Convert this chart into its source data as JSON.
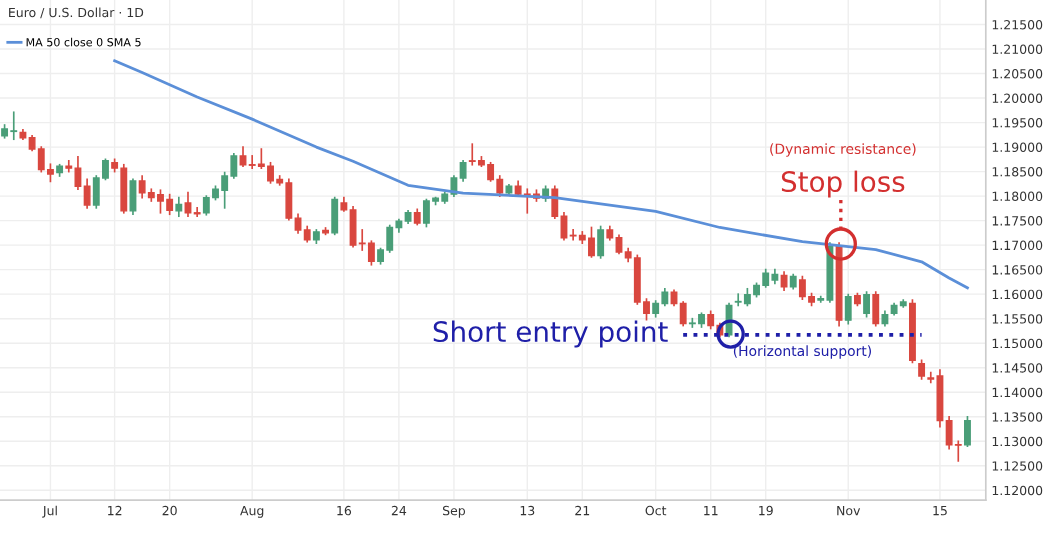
{
  "chart_data": {
    "type": "candlestick",
    "title": "Euro / U.S. Dollar · 1D",
    "categories": [
      null,
      null,
      null,
      null,
      null,
      "Jul",
      null,
      null,
      null,
      null,
      null,
      null,
      "12",
      null,
      null,
      null,
      null,
      null,
      "20",
      null,
      null,
      null,
      null,
      null,
      null,
      null,
      null,
      "Aug",
      null,
      null,
      null,
      null,
      null,
      null,
      null,
      null,
      null,
      "16",
      null,
      null,
      null,
      null,
      null,
      "24",
      null,
      null,
      null,
      null,
      null,
      "Sep",
      null,
      null,
      null,
      null,
      null,
      null,
      null,
      "13",
      null,
      null,
      null,
      null,
      null,
      "21",
      null,
      null,
      null,
      null,
      null,
      null,
      null,
      "Oct",
      null,
      null,
      null,
      null,
      null,
      "11",
      null,
      null,
      null,
      null,
      null,
      "19",
      null,
      null,
      null,
      null,
      null,
      null,
      null,
      null,
      "Nov",
      null,
      null,
      null,
      null,
      null,
      null,
      null,
      null,
      null,
      "15",
      null,
      null,
      null
    ],
    "ohlc": [
      [
        1.1923,
        1.1945,
        1.1919,
        1.1937
      ],
      [
        1.1932,
        1.1971,
        1.1916,
        1.1933
      ],
      [
        1.193,
        1.1935,
        1.1916,
        1.1919
      ],
      [
        1.1919,
        1.1923,
        1.1893,
        1.1896
      ],
      [
        1.1896,
        1.19,
        1.185,
        1.1854
      ],
      [
        1.1854,
        1.1865,
        1.183,
        1.1845
      ],
      [
        1.1848,
        1.1864,
        1.1841,
        1.1861
      ],
      [
        1.1861,
        1.1872,
        1.185,
        1.1857
      ],
      [
        1.1857,
        1.188,
        1.1814,
        1.182
      ],
      [
        1.182,
        1.1834,
        1.1776,
        1.1782
      ],
      [
        1.1782,
        1.1841,
        1.1776,
        1.1837
      ],
      [
        1.1837,
        1.1875,
        1.1834,
        1.1872
      ],
      [
        1.1868,
        1.1875,
        1.185,
        1.1857
      ],
      [
        1.1857,
        1.1864,
        1.1766,
        1.177
      ],
      [
        1.177,
        1.1834,
        1.1763,
        1.1831
      ],
      [
        1.1831,
        1.1841,
        1.1797,
        1.1807
      ],
      [
        1.1807,
        1.1814,
        1.179,
        1.1797
      ],
      [
        1.1803,
        1.1812,
        1.1766,
        1.179
      ],
      [
        1.1793,
        1.1803,
        1.1763,
        1.1771
      ],
      [
        1.177,
        1.1797,
        1.1759,
        1.1783
      ],
      [
        1.1786,
        1.1807,
        1.1759,
        1.1766
      ],
      [
        1.1766,
        1.1776,
        1.1759,
        1.1764
      ],
      [
        1.1766,
        1.18,
        1.1762,
        1.1797
      ],
      [
        1.1797,
        1.182,
        1.1793,
        1.1814
      ],
      [
        1.1812,
        1.1848,
        1.1776,
        1.1841
      ],
      [
        1.1841,
        1.1886,
        1.1837,
        1.1882
      ],
      [
        1.1882,
        1.19,
        1.1861,
        1.1864
      ],
      [
        1.1864,
        1.1882,
        1.1857,
        1.1863
      ],
      [
        1.1865,
        1.1896,
        1.1857,
        1.1861
      ],
      [
        1.1861,
        1.1868,
        1.1827,
        1.1831
      ],
      [
        1.1834,
        1.1841,
        1.1823,
        1.1827
      ],
      [
        1.1827,
        1.1834,
        1.1752,
        1.1755
      ],
      [
        1.1755,
        1.1763,
        1.1725,
        1.1731
      ],
      [
        1.1731,
        1.1738,
        1.1707,
        1.1711
      ],
      [
        1.1711,
        1.1731,
        1.1704,
        1.1727
      ],
      [
        1.173,
        1.1735,
        1.1722,
        1.1725
      ],
      [
        1.1725,
        1.1797,
        1.1722,
        1.1793
      ],
      [
        1.1786,
        1.1797,
        1.177,
        1.1772
      ],
      [
        1.1772,
        1.1778,
        1.1697,
        1.17
      ],
      [
        1.1704,
        1.1731,
        1.169,
        1.1703
      ],
      [
        1.1704,
        1.1708,
        1.166,
        1.1667
      ],
      [
        1.1667,
        1.1693,
        1.1662,
        1.169
      ],
      [
        1.169,
        1.174,
        1.1686,
        1.1736
      ],
      [
        1.1736,
        1.1752,
        1.1727,
        1.1749
      ],
      [
        1.1749,
        1.177,
        1.1745,
        1.1766
      ],
      [
        1.1766,
        1.1773,
        1.1742,
        1.1745
      ],
      [
        1.1745,
        1.1793,
        1.1738,
        1.179
      ],
      [
        1.179,
        1.1797,
        1.1783,
        1.1796
      ],
      [
        1.179,
        1.1807,
        1.1786,
        1.1804
      ],
      [
        1.1804,
        1.1841,
        1.18,
        1.1837
      ],
      [
        1.1837,
        1.1872,
        1.1831,
        1.1868
      ],
      [
        1.1872,
        1.1906,
        1.1864,
        1.1871
      ],
      [
        1.1872,
        1.188,
        1.1861,
        1.1864
      ],
      [
        1.1864,
        1.1868,
        1.1831,
        1.1834
      ],
      [
        1.1834,
        1.1841,
        1.18,
        1.1807
      ],
      [
        1.1807,
        1.1823,
        1.1803,
        1.182
      ],
      [
        1.182,
        1.183,
        1.18,
        1.1804
      ],
      [
        1.1804,
        1.1814,
        1.1766,
        1.1803
      ],
      [
        1.1804,
        1.1812,
        1.179,
        1.1796
      ],
      [
        1.1796,
        1.182,
        1.179,
        1.1814
      ],
      [
        1.1814,
        1.182,
        1.1755,
        1.1759
      ],
      [
        1.1759,
        1.1766,
        1.1711,
        1.1715
      ],
      [
        1.172,
        1.1731,
        1.1711,
        1.1719
      ],
      [
        1.172,
        1.1727,
        1.1704,
        1.1711
      ],
      [
        1.1714,
        1.1736,
        1.1676,
        1.1679
      ],
      [
        1.1679,
        1.1738,
        1.1674,
        1.1731
      ],
      [
        1.1731,
        1.1738,
        1.1711,
        1.1715
      ],
      [
        1.1715,
        1.172,
        1.1683,
        1.1686
      ],
      [
        1.1686,
        1.1693,
        1.1667,
        1.1674
      ],
      [
        1.1674,
        1.1679,
        1.158,
        1.1584
      ],
      [
        1.1584,
        1.159,
        1.1548,
        1.1561
      ],
      [
        1.1561,
        1.1586,
        1.1554,
        1.1581
      ],
      [
        1.1581,
        1.1611,
        1.1577,
        1.1604
      ],
      [
        1.1604,
        1.1608,
        1.1577,
        1.1581
      ],
      [
        1.1581,
        1.1584,
        1.1536,
        1.154
      ],
      [
        1.154,
        1.155,
        1.1533,
        1.1541
      ],
      [
        1.154,
        1.1561,
        1.1533,
        1.1558
      ],
      [
        1.1558,
        1.1565,
        1.153,
        1.1536
      ],
      [
        1.1536,
        1.154,
        1.1514,
        1.1517
      ],
      [
        1.1517,
        1.1581,
        1.1514,
        1.1577
      ],
      [
        1.1584,
        1.16,
        1.1577,
        1.1585
      ],
      [
        1.1581,
        1.1611,
        1.1577,
        1.1599
      ],
      [
        1.1599,
        1.1622,
        1.1595,
        1.1618
      ],
      [
        1.1618,
        1.165,
        1.1615,
        1.1643
      ],
      [
        1.1629,
        1.165,
        1.1622,
        1.164
      ],
      [
        1.1638,
        1.1645,
        1.1608,
        1.1615
      ],
      [
        1.1615,
        1.164,
        1.1611,
        1.1636
      ],
      [
        1.1629,
        1.1636,
        1.159,
        1.1595
      ],
      [
        1.1595,
        1.1601,
        1.1577,
        1.1584
      ],
      [
        1.1588,
        1.1595,
        1.1584,
        1.1591
      ],
      [
        1.1588,
        1.1704,
        1.1584,
        1.1697
      ],
      [
        1.1697,
        1.1704,
        1.1536,
        1.1547
      ],
      [
        1.1547,
        1.1599,
        1.154,
        1.1595
      ],
      [
        1.1597,
        1.1601,
        1.1577,
        1.1581
      ],
      [
        1.1561,
        1.1604,
        1.1554,
        1.1599
      ],
      [
        1.1599,
        1.1604,
        1.1536,
        1.154
      ],
      [
        1.154,
        1.1565,
        1.1536,
        1.1558
      ],
      [
        1.1561,
        1.1581,
        1.1558,
        1.1577
      ],
      [
        1.1577,
        1.1588,
        1.1574,
        1.1584
      ],
      [
        1.1581,
        1.1588,
        1.1461,
        1.1465
      ],
      [
        1.1458,
        1.1465,
        1.1427,
        1.1433
      ],
      [
        1.1429,
        1.144,
        1.142,
        1.1427
      ],
      [
        1.1433,
        1.1445,
        1.133,
        1.1342
      ],
      [
        1.1342,
        1.135,
        1.1285,
        1.1293
      ],
      [
        1.1293,
        1.13,
        1.126,
        1.1292
      ],
      [
        1.1293,
        1.135,
        1.129,
        1.1342
      ]
    ],
    "colors": [
      "#4a9e78",
      "#4a9e78",
      "#d9473f",
      "#d9473f",
      "#d9473f",
      "#d9473f",
      "#4a9e78",
      "#d9473f",
      "#d9473f",
      "#d9473f",
      "#4a9e78",
      "#4a9e78",
      "#d9473f",
      "#d9473f",
      "#4a9e78",
      "#d9473f",
      "#d9473f",
      "#d9473f",
      "#d9473f",
      "#4a9e78",
      "#d9473f",
      "#d9473f",
      "#4a9e78",
      "#4a9e78",
      "#4a9e78",
      "#4a9e78",
      "#d9473f",
      "#d9473f",
      "#d9473f",
      "#d9473f",
      "#d9473f",
      "#d9473f",
      "#d9473f",
      "#d9473f",
      "#4a9e78",
      "#d9473f",
      "#4a9e78",
      "#d9473f",
      "#d9473f",
      "#d9473f",
      "#d9473f",
      "#4a9e78",
      "#4a9e78",
      "#4a9e78",
      "#4a9e78",
      "#d9473f",
      "#4a9e78",
      "#4a9e78",
      "#4a9e78",
      "#4a9e78",
      "#4a9e78",
      "#d9473f",
      "#d9473f",
      "#d9473f",
      "#d9473f",
      "#4a9e78",
      "#d9473f",
      "#d9473f",
      "#d9473f",
      "#4a9e78",
      "#d9473f",
      "#d9473f",
      "#d9473f",
      "#d9473f",
      "#d9473f",
      "#4a9e78",
      "#d9473f",
      "#d9473f",
      "#d9473f",
      "#d9473f",
      "#d9473f",
      "#4a9e78",
      "#4a9e78",
      "#d9473f",
      "#d9473f",
      "#4a9e78",
      "#4a9e78",
      "#d9473f",
      "#d9473f",
      "#4a9e78",
      "#4a9e78",
      "#4a9e78",
      "#4a9e78",
      "#4a9e78",
      "#4a9e78",
      "#d9473f",
      "#4a9e78",
      "#d9473f",
      "#d9473f",
      "#4a9e78",
      "#4a9e78",
      "#d9473f",
      "#4a9e78",
      "#d9473f",
      "#4a9e78",
      "#d9473f",
      "#4a9e78",
      "#4a9e78",
      "#4a9e78",
      "#d9473f",
      "#d9473f",
      "#d9473f",
      "#d9473f",
      "#d9473f",
      "#d9473f",
      "#4a9e78"
    ],
    "series": [
      {
        "type": "line",
        "name": "MA 50 close 0 SMA 5",
        "color": "#5b8fd8",
        "values": [
          null,
          null,
          null,
          null,
          null,
          null,
          null,
          null,
          null,
          null,
          null,
          null,
          1.2076,
          null,
          null,
          1.2052,
          null,
          null,
          null,
          null,
          null,
          1.2002,
          null,
          null,
          null,
          null,
          null,
          1.1957,
          null,
          null,
          null,
          null,
          null,
          null,
          1.19,
          null,
          null,
          null,
          1.1871,
          null,
          null,
          null,
          null,
          null,
          1.1822,
          null,
          null,
          null,
          null,
          null,
          1.1806,
          null,
          null,
          null,
          null,
          null,
          null,
          null,
          null,
          null,
          1.1797,
          null,
          null,
          null,
          null,
          null,
          null,
          null,
          null,
          null,
          null,
          1.1769,
          null,
          null,
          null,
          null,
          null,
          null,
          1.1736,
          null,
          null,
          null,
          null,
          null,
          null,
          null,
          null,
          1.1707,
          null,
          null,
          null,
          null,
          null,
          null,
          null,
          1.1691,
          null,
          null,
          null,
          null,
          1.1666,
          null,
          null,
          1.1633,
          null,
          1.1613
        ]
      },
      {
        "type": "line",
        "color": "#1f1fa8",
        "line_style": "dotted",
        "values": [
          null,
          null,
          null,
          null,
          null,
          null,
          null,
          null,
          null,
          null,
          null,
          null,
          null,
          null,
          null,
          null,
          null,
          null,
          null,
          null,
          null,
          null,
          null,
          null,
          null,
          null,
          null,
          null,
          null,
          null,
          null,
          null,
          null,
          null,
          null,
          null,
          null,
          null,
          null,
          null,
          null,
          null,
          null,
          null,
          null,
          null,
          null,
          null,
          null,
          null,
          null,
          null,
          null,
          null,
          null,
          null,
          null,
          null,
          null,
          null,
          null,
          null,
          null,
          null,
          null,
          null,
          null,
          null,
          null,
          null,
          null,
          null,
          null,
          null,
          1.1517,
          1.1517,
          1.1517,
          1.1517,
          1.1517,
          1.1517,
          1.1517,
          1.1517,
          1.1517,
          1.1517,
          1.1517,
          1.1517,
          1.1517,
          1.1517,
          1.1517,
          1.1517,
          1.1517,
          1.1517,
          1.1517,
          1.1517,
          1.1517,
          1.1517,
          1.1517,
          1.1517,
          1.1517,
          1.1517,
          1.1517,
          null,
          null,
          null,
          null,
          null
        ]
      }
    ],
    "ylim": [
      1.118,
      1.22
    ],
    "yticks": [
      {
        "value": 1.12,
        "label": "1.12000"
      },
      {
        "value": 1.125,
        "label": "1.12500"
      },
      {
        "value": 1.13,
        "label": "1.13000"
      },
      {
        "value": 1.135,
        "label": "1.13500"
      },
      {
        "value": 1.14,
        "label": "1.14000"
      },
      {
        "value": 1.145,
        "label": "1.14500"
      },
      {
        "value": 1.15,
        "label": "1.15000"
      },
      {
        "value": 1.155,
        "label": "1.15500"
      },
      {
        "value": 1.16,
        "label": "1.16000"
      },
      {
        "value": 1.165,
        "label": "1.16500"
      },
      {
        "value": 1.17,
        "label": "1.17000"
      },
      {
        "value": 1.175,
        "label": "1.17500"
      },
      {
        "value": 1.18,
        "label": "1.18000"
      },
      {
        "value": 1.185,
        "label": "1.18500"
      },
      {
        "value": 1.19,
        "label": "1.19000"
      },
      {
        "value": 1.195,
        "label": "1.19500"
      },
      {
        "value": 1.2,
        "label": "1.20000"
      },
      {
        "value": 1.205,
        "label": "1.20500"
      },
      {
        "value": 1.21,
        "label": "1.21000"
      },
      {
        "value": 1.215,
        "label": "1.21500"
      }
    ],
    "grid": true,
    "legend": "top left",
    "annotations": [
      "(Dynamic resistance)",
      "Stop loss",
      "Short entry point",
      "(Horizontal support)"
    ]
  }
}
